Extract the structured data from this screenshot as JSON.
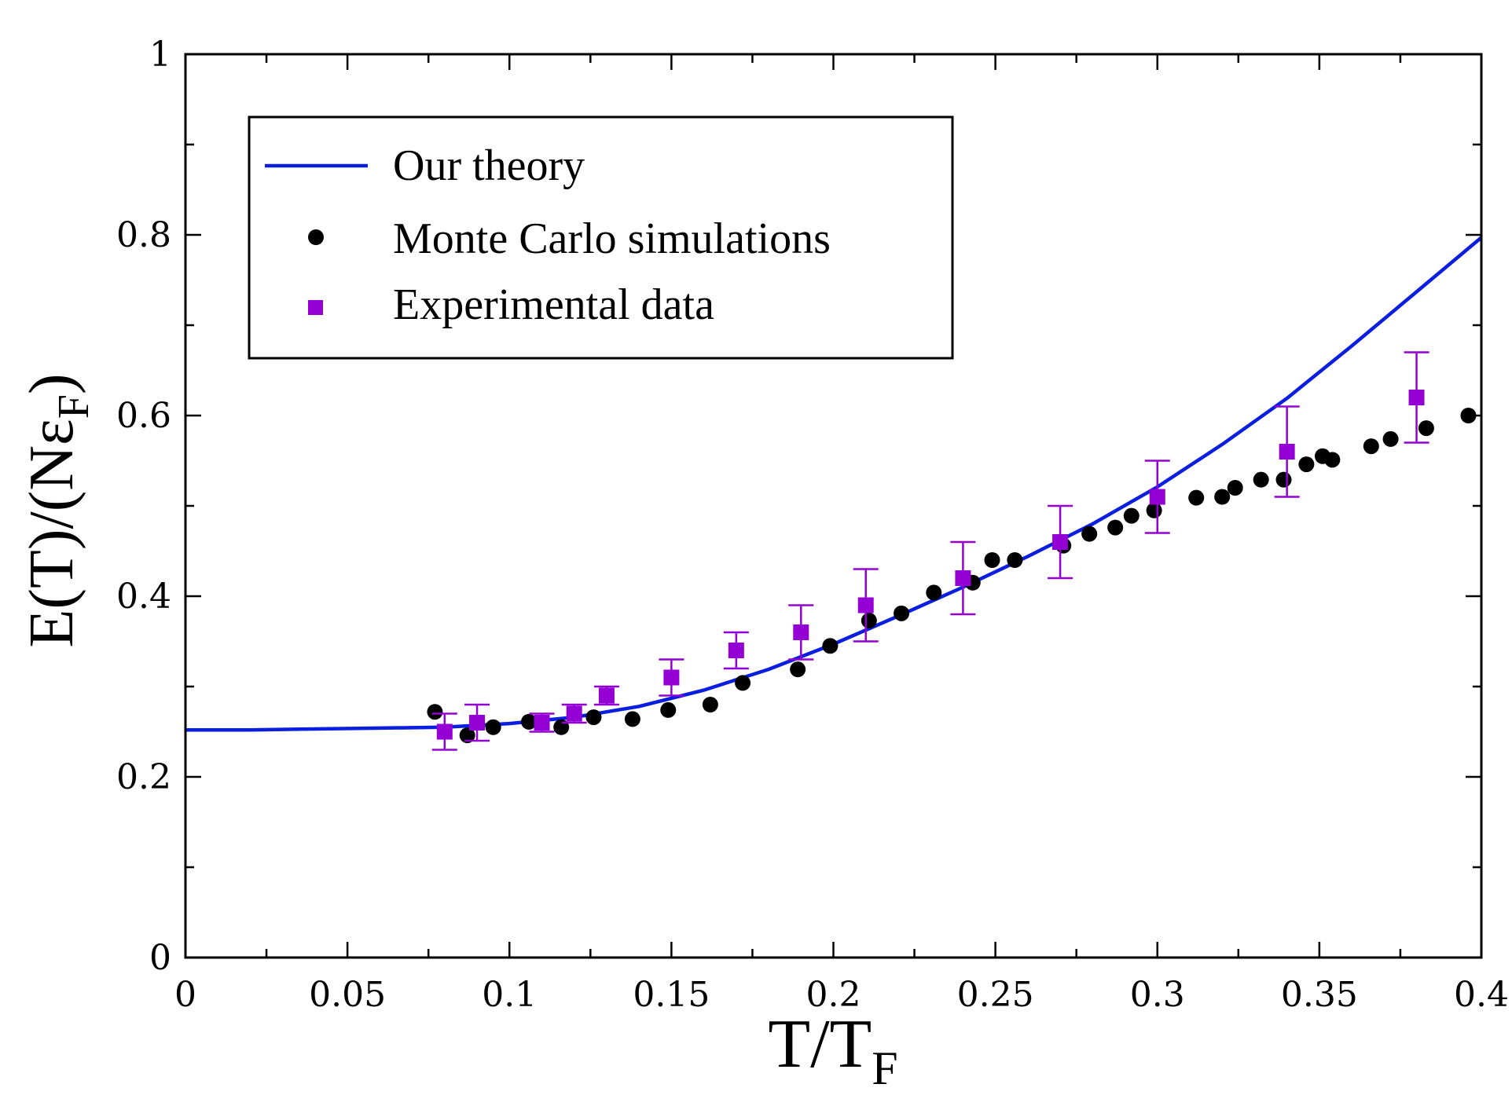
{
  "chart_data": {
    "type": "scatter",
    "xlabel": {
      "main": "T/T",
      "sub": "F"
    },
    "ylabel": {
      "main": "E(T)/(Nε",
      "sub": "F",
      "close": ")"
    },
    "xlim": [
      0,
      0.4
    ],
    "ylim": [
      0,
      1
    ],
    "x_ticks": [
      0,
      0.05,
      0.1,
      0.15,
      0.2,
      0.25,
      0.3,
      0.35,
      0.4
    ],
    "x_tick_labels": [
      "0",
      "0.05",
      "0.1",
      "0.15",
      "0.2",
      "0.25",
      "0.3",
      "0.35",
      "0.4"
    ],
    "y_ticks": [
      0,
      0.2,
      0.4,
      0.6,
      0.8,
      1
    ],
    "y_tick_labels": [
      "0",
      "0.2",
      "0.4",
      "0.6",
      "0.8",
      "1"
    ],
    "grid": false,
    "legend": {
      "position": "top-left",
      "entries": [
        "Our theory",
        "Monte Carlo simulations",
        "Experimental data"
      ]
    },
    "colors": {
      "theory": "#0a1ee0",
      "monte_carlo": "#000000",
      "experimental": "#9400d3"
    },
    "series": [
      {
        "name": "Our theory",
        "kind": "line",
        "x": [
          0,
          0.02,
          0.04,
          0.06,
          0.08,
          0.1,
          0.12,
          0.14,
          0.16,
          0.18,
          0.2,
          0.22,
          0.24,
          0.26,
          0.28,
          0.3,
          0.32,
          0.34,
          0.36,
          0.38,
          0.4
        ],
        "y": [
          0.252,
          0.252,
          0.253,
          0.254,
          0.255,
          0.259,
          0.266,
          0.278,
          0.296,
          0.319,
          0.347,
          0.378,
          0.41,
          0.444,
          0.48,
          0.521,
          0.568,
          0.619,
          0.677,
          0.737,
          0.797
        ]
      },
      {
        "name": "Monte Carlo simulations",
        "kind": "scatter",
        "x": [
          0.077,
          0.087,
          0.095,
          0.106,
          0.116,
          0.126,
          0.138,
          0.149,
          0.162,
          0.172,
          0.189,
          0.199,
          0.211,
          0.221,
          0.231,
          0.243,
          0.249,
          0.256,
          0.271,
          0.279,
          0.287,
          0.292,
          0.299,
          0.312,
          0.32,
          0.324,
          0.332,
          0.339,
          0.346,
          0.351,
          0.354,
          0.366,
          0.372,
          0.383,
          0.396
        ],
        "y": [
          0.272,
          0.246,
          0.255,
          0.261,
          0.255,
          0.266,
          0.264,
          0.274,
          0.28,
          0.304,
          0.319,
          0.345,
          0.373,
          0.381,
          0.404,
          0.415,
          0.44,
          0.44,
          0.456,
          0.469,
          0.476,
          0.489,
          0.495,
          0.509,
          0.51,
          0.52,
          0.529,
          0.529,
          0.546,
          0.555,
          0.551,
          0.566,
          0.574,
          0.586,
          0.6
        ]
      },
      {
        "name": "Experimental data",
        "kind": "scatter_errorbar",
        "x": [
          0.08,
          0.09,
          0.11,
          0.12,
          0.13,
          0.15,
          0.17,
          0.19,
          0.21,
          0.24,
          0.27,
          0.3,
          0.34,
          0.38
        ],
        "y": [
          0.25,
          0.26,
          0.26,
          0.27,
          0.29,
          0.31,
          0.34,
          0.36,
          0.39,
          0.42,
          0.46,
          0.51,
          0.56,
          0.62
        ],
        "err": [
          0.02,
          0.02,
          0.01,
          0.01,
          0.01,
          0.02,
          0.02,
          0.03,
          0.04,
          0.04,
          0.04,
          0.04,
          0.05,
          0.05
        ]
      }
    ]
  }
}
